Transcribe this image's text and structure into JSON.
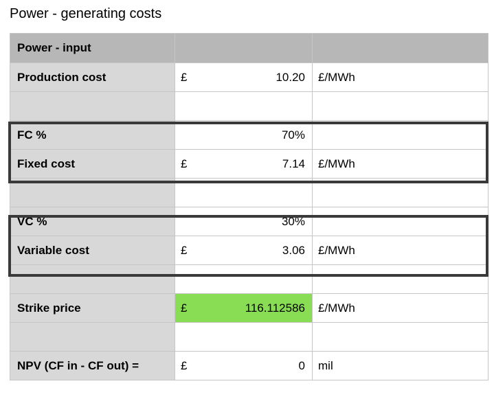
{
  "title": "Power - generating costs",
  "header": {
    "label": "Power - input"
  },
  "rows": [
    {
      "label": "Production cost",
      "currency": "£",
      "amount": "10.20",
      "unit": "£/MWh"
    },
    {
      "label": "",
      "currency": "",
      "amount": "",
      "unit": ""
    },
    {
      "label": "FC %",
      "currency": "",
      "amount": "70%",
      "unit": ""
    },
    {
      "label": "Fixed cost",
      "currency": "£",
      "amount": "7.14",
      "unit": "£/MWh"
    },
    {
      "label": "",
      "currency": "",
      "amount": "",
      "unit": ""
    },
    {
      "label": "VC %",
      "currency": "",
      "amount": "30%",
      "unit": ""
    },
    {
      "label": "Variable cost",
      "currency": "£",
      "amount": "3.06",
      "unit": "£/MWh"
    },
    {
      "label": "",
      "currency": "",
      "amount": "",
      "unit": ""
    },
    {
      "label": "Strike price",
      "currency": "£",
      "amount": "116.112586",
      "unit": "£/MWh"
    },
    {
      "label": "",
      "currency": "",
      "amount": "",
      "unit": ""
    },
    {
      "label": "NPV (CF in - CF out) =",
      "currency": "£",
      "amount": "0",
      "unit": "mil"
    }
  ],
  "colors": {
    "header_bg": "#b7b7b7",
    "label_bg": "#d8d8d8",
    "highlight_bg": "#88dd55",
    "group_border": "#3a3a3a"
  }
}
